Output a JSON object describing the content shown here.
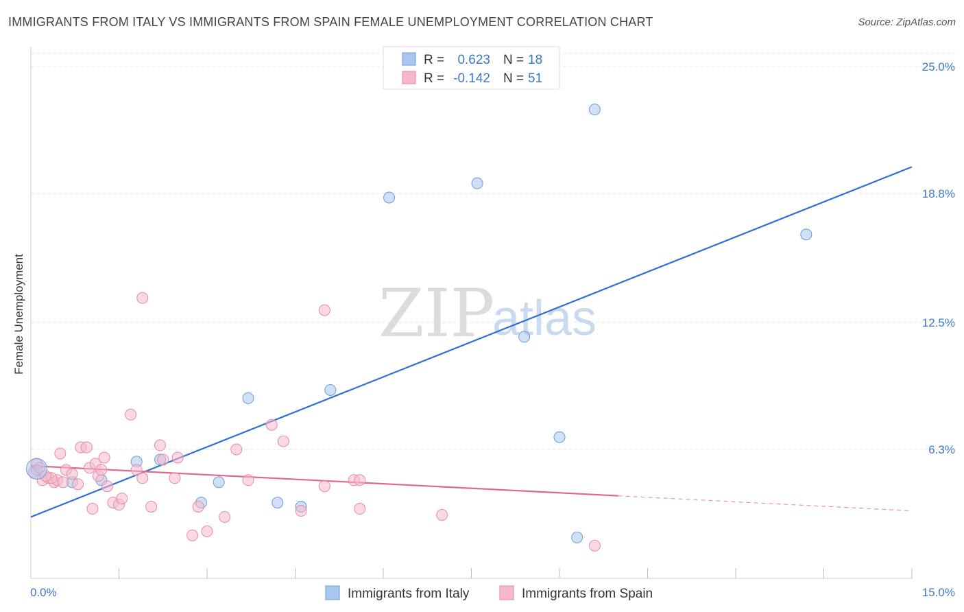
{
  "chart_data": {
    "type": "scatter",
    "title": "IMMIGRANTS FROM ITALY VS IMMIGRANTS FROM SPAIN FEMALE UNEMPLOYMENT CORRELATION CHART",
    "source": "Source: ZipAtlas.com",
    "xlabel": "",
    "ylabel": "Female Unemployment",
    "xlim": [
      0,
      15
    ],
    "ylim": [
      0,
      25
    ],
    "x_tick_labels": [
      {
        "value": 0,
        "label": "0.0%"
      },
      {
        "value": 15,
        "label": "15.0%"
      }
    ],
    "y_ticks": [
      {
        "value": 6.3,
        "label": "6.3%"
      },
      {
        "value": 12.5,
        "label": "12.5%"
      },
      {
        "value": 18.8,
        "label": "18.8%"
      },
      {
        "value": 25.0,
        "label": "25.0%"
      }
    ],
    "x_minor_ticks": [
      1.5,
      3,
      4.5,
      6,
      7.5,
      9,
      10.5,
      12,
      13.5,
      15
    ],
    "legend": {
      "r_label": "R =",
      "n_label": "N =",
      "entries": [
        {
          "r": "0.623",
          "n": "18",
          "color": "#a9c6ef"
        },
        {
          "r": "-0.142",
          "n": "51",
          "color": "#f6b9cb"
        }
      ]
    },
    "series": [
      {
        "name": "Immigrants from Italy",
        "color": "#a9c6ef",
        "stroke": "#6d9ad6",
        "line_color": "#2f6fcf",
        "trend": {
          "x0": 0.0,
          "y0": 3.0,
          "x1": 15.0,
          "y1": 20.1,
          "dash_from": null
        },
        "points": [
          [
            0.1,
            5.3
          ],
          [
            0.7,
            4.7
          ],
          [
            1.2,
            4.8
          ],
          [
            1.8,
            5.7
          ],
          [
            2.2,
            5.8
          ],
          [
            2.9,
            3.7
          ],
          [
            3.2,
            4.7
          ],
          [
            3.7,
            8.8
          ],
          [
            4.2,
            3.7
          ],
          [
            4.6,
            3.5
          ],
          [
            5.1,
            9.2
          ],
          [
            6.1,
            18.6
          ],
          [
            7.6,
            19.3
          ],
          [
            8.4,
            11.8
          ],
          [
            9.0,
            6.9
          ],
          [
            9.3,
            2.0
          ],
          [
            9.6,
            22.9
          ],
          [
            13.2,
            16.8
          ]
        ]
      },
      {
        "name": "Immigrants from Spain",
        "color": "#f6b9cb",
        "stroke": "#e68aa6",
        "line_color": "#e0668e",
        "trend": {
          "x0": 0.0,
          "y0": 5.5,
          "x1": 15.0,
          "y1": 3.3,
          "dash_from": 10.0
        },
        "points": [
          [
            0.05,
            5.2
          ],
          [
            0.1,
            5.6
          ],
          [
            0.2,
            4.8
          ],
          [
            0.3,
            4.9
          ],
          [
            0.4,
            4.7
          ],
          [
            0.45,
            4.8
          ],
          [
            0.5,
            6.1
          ],
          [
            0.6,
            5.3
          ],
          [
            0.7,
            5.1
          ],
          [
            0.8,
            4.6
          ],
          [
            0.85,
            6.4
          ],
          [
            0.95,
            6.4
          ],
          [
            1.0,
            5.4
          ],
          [
            1.05,
            3.4
          ],
          [
            1.1,
            5.6
          ],
          [
            1.15,
            5.0
          ],
          [
            1.2,
            5.3
          ],
          [
            1.25,
            5.9
          ],
          [
            1.3,
            4.5
          ],
          [
            1.4,
            3.7
          ],
          [
            1.5,
            3.6
          ],
          [
            1.55,
            3.9
          ],
          [
            1.7,
            8.0
          ],
          [
            1.8,
            5.3
          ],
          [
            1.9,
            13.7
          ],
          [
            1.9,
            4.9
          ],
          [
            2.05,
            3.5
          ],
          [
            2.2,
            6.5
          ],
          [
            2.25,
            5.8
          ],
          [
            2.45,
            4.9
          ],
          [
            2.5,
            5.9
          ],
          [
            2.75,
            2.1
          ],
          [
            2.85,
            3.5
          ],
          [
            3.0,
            2.3
          ],
          [
            3.3,
            3.0
          ],
          [
            3.5,
            6.3
          ],
          [
            3.7,
            4.8
          ],
          [
            4.1,
            7.5
          ],
          [
            4.3,
            6.7
          ],
          [
            4.6,
            3.3
          ],
          [
            5.0,
            4.5
          ],
          [
            5.0,
            13.1
          ],
          [
            5.5,
            4.8
          ],
          [
            5.6,
            4.8
          ],
          [
            5.6,
            3.4
          ],
          [
            7.0,
            3.1
          ],
          [
            9.6,
            1.6
          ],
          [
            0.15,
            5.4
          ],
          [
            0.35,
            4.9
          ],
          [
            0.55,
            4.7
          ],
          [
            0.25,
            5.0
          ]
        ]
      }
    ],
    "bottom_legend": [
      "Immigrants from Italy",
      "Immigrants from Spain"
    ],
    "watermark": {
      "zip": "ZIP",
      "atlas": "atlas"
    }
  }
}
